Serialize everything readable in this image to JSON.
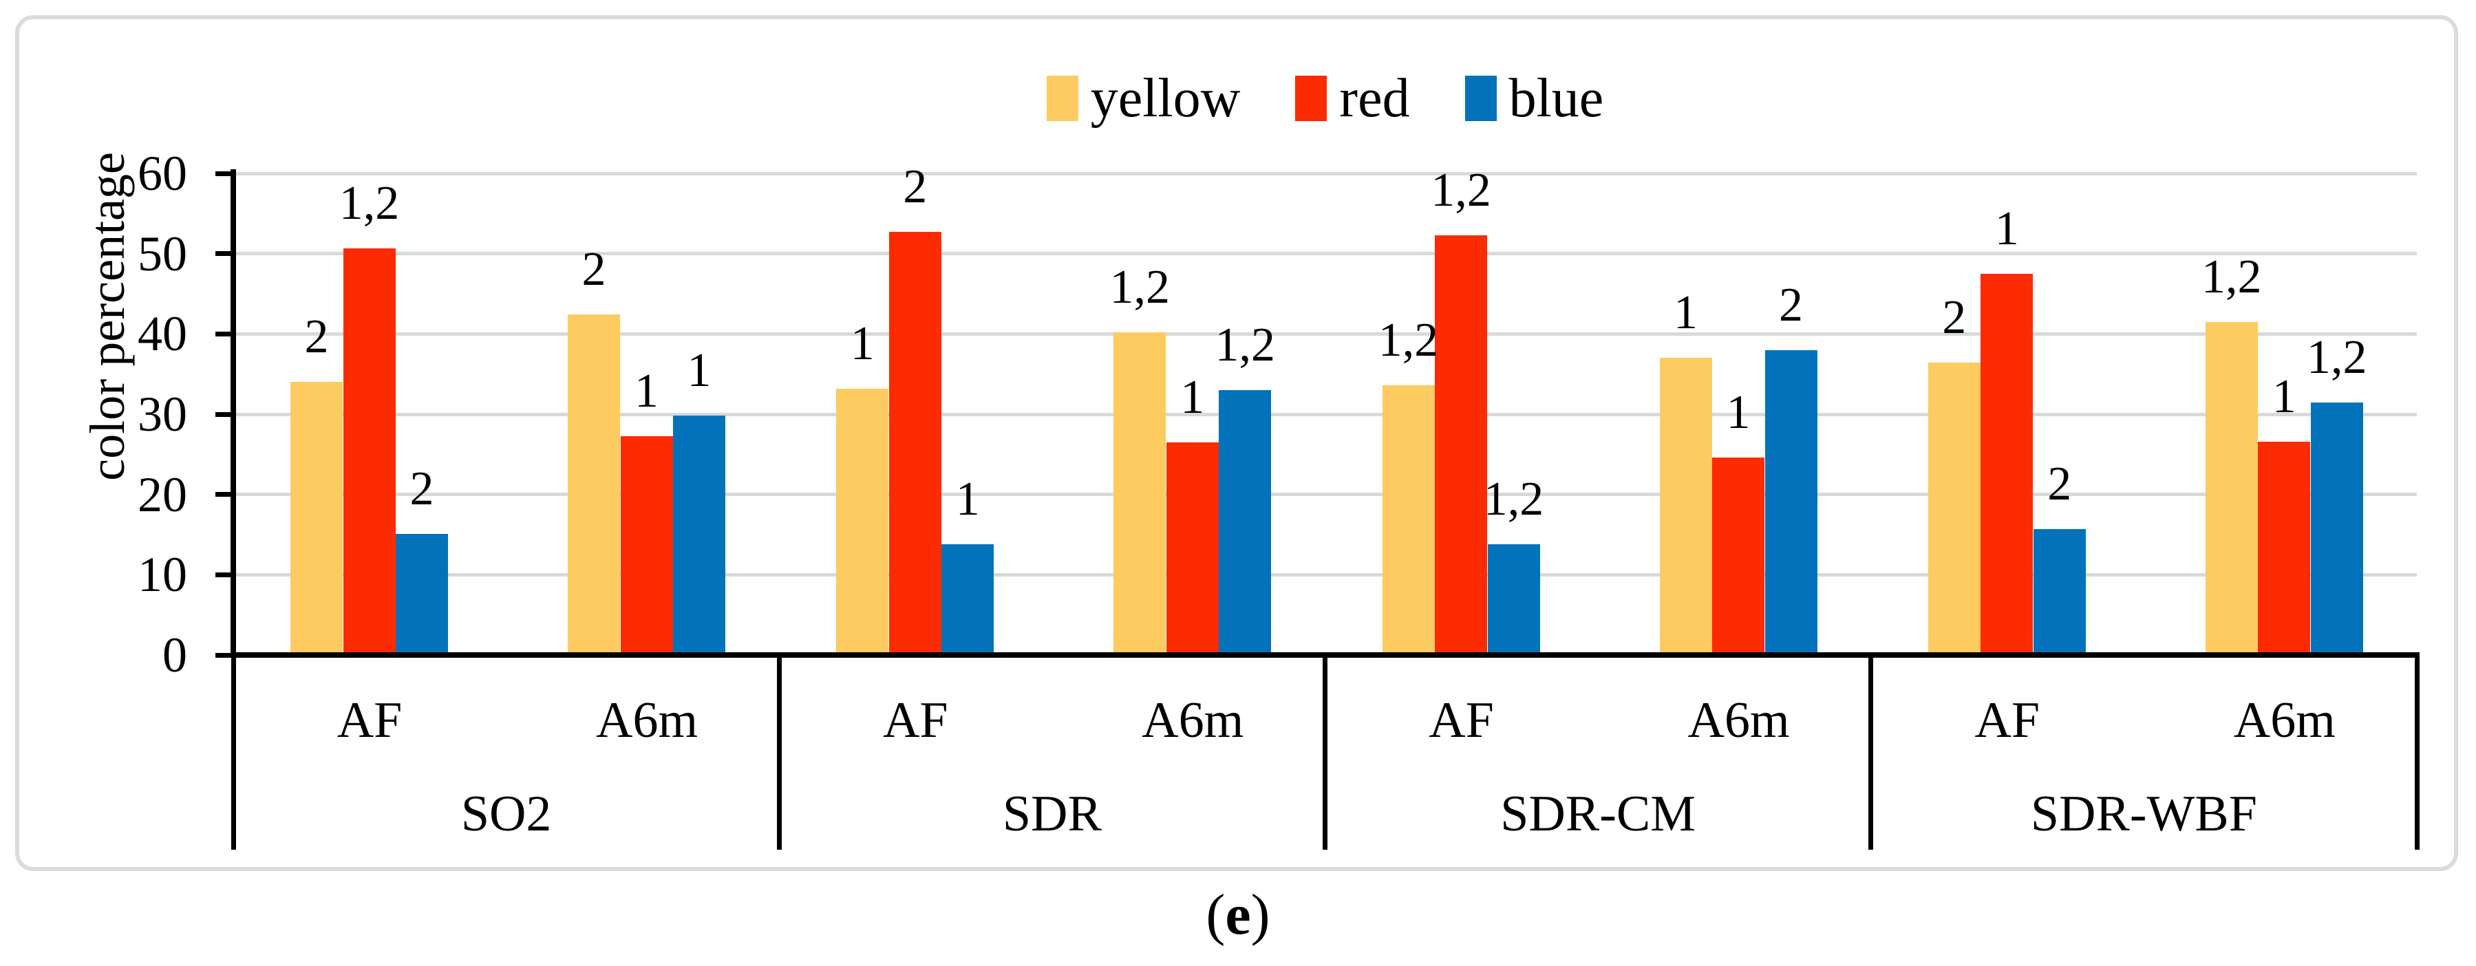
{
  "legend": {
    "items": [
      {
        "label": "yellow",
        "color": "#FDCB60"
      },
      {
        "label": "red",
        "color": "#FD2B01"
      },
      {
        "label": "blue",
        "color": "#0273BA"
      }
    ]
  },
  "caption": {
    "open": "(",
    "letter": "e",
    "close": ")"
  },
  "chart_data": {
    "type": "bar",
    "title": "",
    "xlabel": "",
    "ylabel": "color percentage",
    "ylim": [
      0,
      60
    ],
    "yticks": [
      0,
      10,
      20,
      30,
      40,
      50,
      60
    ],
    "grid": true,
    "legend_position": "top-center",
    "series": [
      "yellow",
      "red",
      "blue"
    ],
    "colors": [
      "#FDCB60",
      "#FD2B01",
      "#0273BA"
    ],
    "gridline_color": "#D9D9D9",
    "groups": [
      {
        "name": "SO2",
        "clusters": [
          {
            "label": "AF",
            "values": [
              34.0,
              50.7,
              15.1
            ],
            "labels": [
              "2",
              "1,2",
              "2"
            ]
          },
          {
            "label": "A6m",
            "values": [
              42.4,
              27.3,
              29.8
            ],
            "labels": [
              "2",
              "1",
              "1"
            ]
          }
        ]
      },
      {
        "name": "SDR",
        "clusters": [
          {
            "label": "AF",
            "values": [
              33.2,
              52.7,
              13.8
            ],
            "labels": [
              "1",
              "2",
              "1"
            ]
          },
          {
            "label": "A6m",
            "values": [
              40.2,
              26.5,
              33.0
            ],
            "labels": [
              "1,2",
              "1",
              "1,2"
            ]
          }
        ]
      },
      {
        "name": "SDR-CM",
        "clusters": [
          {
            "label": "AF",
            "values": [
              33.6,
              52.3,
              13.8
            ],
            "labels": [
              "1,2",
              "1,2",
              "1,2"
            ]
          },
          {
            "label": "A6m",
            "values": [
              37.0,
              24.6,
              38.0
            ],
            "labels": [
              "1",
              "1",
              "2"
            ]
          }
        ]
      },
      {
        "name": "SDR-WBF",
        "clusters": [
          {
            "label": "AF",
            "values": [
              36.4,
              47.5,
              15.7
            ],
            "labels": [
              "2",
              "1",
              "2"
            ]
          },
          {
            "label": "A6m",
            "values": [
              41.5,
              26.6,
              31.5
            ],
            "labels": [
              "1,2",
              "1",
              "1,2"
            ]
          }
        ]
      }
    ]
  }
}
